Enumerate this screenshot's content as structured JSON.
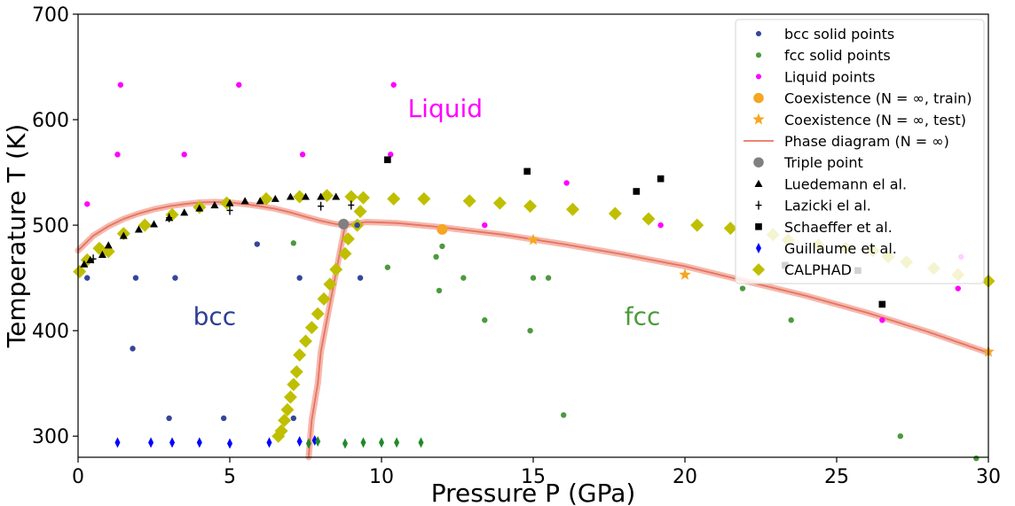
{
  "chart_data": {
    "type": "scatter",
    "xlabel": "Pressure P (GPa)",
    "ylabel": "Temperature T (K)",
    "xlim": [
      0,
      30
    ],
    "ylim": [
      280,
      700
    ],
    "xticks": [
      0,
      5,
      10,
      15,
      20,
      25,
      30
    ],
    "yticks": [
      300,
      400,
      500,
      600,
      700
    ],
    "grid": false,
    "legend_position": "top-right",
    "region_labels": [
      {
        "text": "Liquid",
        "x": 12.1,
        "y": 611,
        "color": "#ff00ff"
      },
      {
        "text": "bcc",
        "x": 4.5,
        "y": 414,
        "color": "#2c3e94"
      },
      {
        "text": "fcc",
        "x": 18.6,
        "y": 414,
        "color": "#4a9a3a"
      }
    ],
    "series": [
      {
        "name": "bcc solid points",
        "marker": "circle",
        "color": "#34469b",
        "points": [
          [
            0.3,
            450
          ],
          [
            1.8,
            383
          ],
          [
            1.9,
            450
          ],
          [
            3.2,
            450
          ],
          [
            5.9,
            482
          ],
          [
            7.3,
            450
          ],
          [
            9.3,
            450
          ],
          [
            3.0,
            317
          ],
          [
            4.8,
            317
          ],
          [
            7.1,
            317
          ],
          [
            9.2,
            500
          ]
        ]
      },
      {
        "name": "fcc solid points",
        "marker": "circle",
        "color": "#4c9a3d",
        "points": [
          [
            7.1,
            483
          ],
          [
            10.2,
            460
          ],
          [
            11.8,
            470
          ],
          [
            12.0,
            480
          ],
          [
            11.9,
            438
          ],
          [
            12.7,
            450
          ],
          [
            13.4,
            410
          ],
          [
            14.9,
            400
          ],
          [
            15.0,
            450
          ],
          [
            15.5,
            450
          ],
          [
            16.0,
            320
          ],
          [
            21.9,
            440
          ],
          [
            23.5,
            410
          ],
          [
            27.1,
            300
          ],
          [
            29.6,
            279
          ]
        ]
      },
      {
        "name": "Liquid points",
        "marker": "circle",
        "color": "#ff00ff",
        "points": [
          [
            0.3,
            520
          ],
          [
            1.4,
            633
          ],
          [
            1.3,
            567
          ],
          [
            3.5,
            567
          ],
          [
            5.3,
            633
          ],
          [
            7.4,
            567
          ],
          [
            10.3,
            567
          ],
          [
            10.4,
            633
          ],
          [
            13.4,
            500
          ],
          [
            16.1,
            540
          ],
          [
            19.2,
            500
          ],
          [
            26.5,
            410
          ],
          [
            29.0,
            440
          ],
          [
            29.1,
            470
          ]
        ]
      },
      {
        "name": "Coexistence (N = ∞, train)",
        "marker": "circle-large",
        "color": "#f5a623",
        "points": [
          [
            12.0,
            496
          ]
        ]
      },
      {
        "name": "Coexistence (N = ∞, test)",
        "marker": "star",
        "color": "#f5a623",
        "points": [
          [
            15.0,
            486
          ],
          [
            20.0,
            453
          ],
          [
            30.0,
            380
          ]
        ]
      },
      {
        "name": "Phase diagram (N = ∞)",
        "marker": "line",
        "color": "#e8735f",
        "segments": [
          [
            [
              0,
              476
            ],
            [
              0.5,
              490
            ],
            [
              1,
              499
            ],
            [
              1.5,
              506
            ],
            [
              2,
              511
            ],
            [
              2.5,
              515
            ],
            [
              3,
              518
            ],
            [
              3.5,
              520
            ],
            [
              4,
              521.5
            ],
            [
              4.5,
              522
            ],
            [
              5,
              521.5
            ],
            [
              5.5,
              520
            ],
            [
              6,
              518
            ],
            [
              6.5,
              515.5
            ],
            [
              7,
              512
            ],
            [
              7.5,
              508
            ],
            [
              8,
              504
            ],
            [
              8.5,
              501
            ],
            [
              8.8,
              500
            ]
          ],
          [
            [
              8.8,
              500
            ],
            [
              9.5,
              503
            ],
            [
              10.5,
              502
            ],
            [
              12,
              498
            ],
            [
              14,
              491
            ],
            [
              16,
              482
            ],
            [
              18,
              472
            ],
            [
              20,
              461
            ],
            [
              22,
              447
            ],
            [
              24,
              433
            ],
            [
              26,
              417
            ],
            [
              28,
              399
            ],
            [
              30,
              379
            ]
          ],
          [
            [
              8.8,
              500
            ],
            [
              8.6,
              470
            ],
            [
              8.4,
              440
            ],
            [
              8.2,
              410
            ],
            [
              8.0,
              380
            ],
            [
              7.9,
              350
            ],
            [
              7.7,
              315
            ],
            [
              7.6,
              280
            ]
          ]
        ]
      },
      {
        "name": "Triple point",
        "marker": "circle-large",
        "color": "#808080",
        "points": [
          [
            8.75,
            501
          ]
        ]
      },
      {
        "name": "Luedemann el al.",
        "marker": "triangle",
        "color": "#000000",
        "points": [
          [
            0.2,
            463
          ],
          [
            0.4,
            467
          ],
          [
            0.8,
            472
          ],
          [
            1.0,
            481
          ],
          [
            1.5,
            490
          ],
          [
            2.0,
            496
          ],
          [
            2.5,
            501
          ],
          [
            3.0,
            507
          ],
          [
            3.5,
            512
          ],
          [
            4.0,
            516
          ],
          [
            4.5,
            519
          ],
          [
            5.0,
            521
          ],
          [
            5.5,
            523
          ],
          [
            6.0,
            523
          ],
          [
            6.5,
            525
          ],
          [
            7.0,
            527
          ],
          [
            7.5,
            527
          ],
          [
            8.0,
            527
          ],
          [
            8.5,
            527
          ]
        ]
      },
      {
        "name": "Lazicki el al.",
        "marker": "cross",
        "color": "#000000",
        "points": [
          [
            0.5,
            468
          ],
          [
            3.0,
            507
          ],
          [
            5.0,
            514
          ],
          [
            8.0,
            518
          ],
          [
            9.0,
            519
          ]
        ]
      },
      {
        "name": "Schaeffer et al.",
        "marker": "square",
        "color": "#000000",
        "points": [
          [
            10.2,
            562
          ],
          [
            14.8,
            551
          ],
          [
            18.4,
            532
          ],
          [
            19.2,
            544
          ],
          [
            23.3,
            462
          ],
          [
            25.7,
            457
          ],
          [
            26.5,
            425
          ]
        ]
      },
      {
        "name": "Guillaume et al.",
        "marker": "thin-diamond",
        "color": "#0000ff",
        "points": [
          [
            1.3,
            294
          ],
          [
            2.4,
            294
          ],
          [
            3.1,
            294
          ],
          [
            4.0,
            294
          ],
          [
            5.0,
            293
          ],
          [
            6.3,
            294
          ],
          [
            7.3,
            295
          ],
          [
            7.8,
            296
          ]
        ]
      },
      {
        "name": "",
        "marker": "thin-diamond",
        "color": "#1f8a2a",
        "points": [
          [
            7.6,
            293
          ],
          [
            7.9,
            295
          ],
          [
            8.8,
            293
          ],
          [
            9.4,
            294
          ],
          [
            10.0,
            294
          ],
          [
            10.5,
            294
          ],
          [
            11.3,
            294
          ]
        ]
      },
      {
        "name": "CALPHAD",
        "marker": "diamond",
        "color": "#bfbf00",
        "points": [
          [
            0.05,
            456
          ],
          [
            0.3,
            467
          ],
          [
            0.7,
            478
          ],
          [
            1.0,
            475
          ],
          [
            1.5,
            492
          ],
          [
            2.2,
            500
          ],
          [
            3.1,
            510
          ],
          [
            4.0,
            517
          ],
          [
            4.9,
            521
          ],
          [
            6.2,
            525
          ],
          [
            7.3,
            527
          ],
          [
            8.2,
            528
          ],
          [
            9.0,
            527
          ],
          [
            9.4,
            526
          ],
          [
            10.4,
            525
          ],
          [
            11.4,
            525
          ],
          [
            12.9,
            523
          ],
          [
            13.9,
            521
          ],
          [
            14.9,
            518
          ],
          [
            16.3,
            515
          ],
          [
            17.7,
            511
          ],
          [
            18.8,
            506
          ],
          [
            20.4,
            500
          ],
          [
            21.5,
            497
          ],
          [
            22.9,
            491
          ],
          [
            23.4,
            486
          ],
          [
            24.4,
            481
          ],
          [
            25.3,
            478
          ],
          [
            26.2,
            476
          ],
          [
            26.7,
            470
          ],
          [
            27.3,
            465
          ],
          [
            28.2,
            459
          ],
          [
            29.0,
            453
          ],
          [
            30.0,
            447
          ],
          [
            9.3,
            513
          ],
          [
            9.2,
            500
          ],
          [
            8.9,
            487
          ],
          [
            8.8,
            473
          ],
          [
            8.5,
            458
          ],
          [
            8.3,
            444
          ],
          [
            8.1,
            430
          ],
          [
            7.9,
            416
          ],
          [
            7.7,
            403
          ],
          [
            7.5,
            390
          ],
          [
            7.3,
            377
          ],
          [
            7.2,
            361
          ],
          [
            7.1,
            349
          ],
          [
            7.0,
            337
          ],
          [
            6.9,
            325
          ],
          [
            6.8,
            315
          ],
          [
            6.7,
            305
          ],
          [
            6.6,
            300
          ]
        ]
      }
    ]
  }
}
